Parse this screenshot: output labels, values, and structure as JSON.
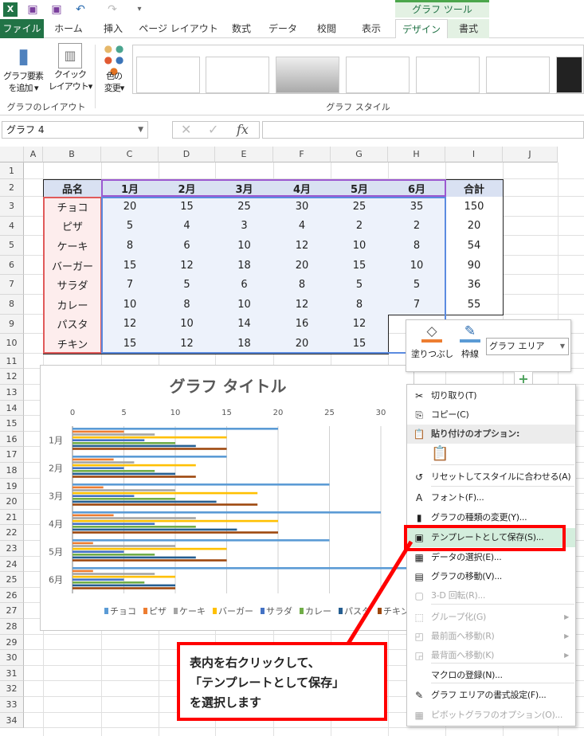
{
  "qat": {
    "icons": [
      "excel-icon",
      "save-icon",
      "save-as-icon",
      "undo-icon",
      "redo-icon",
      "customize-icon"
    ]
  },
  "tool_tab": "グラフ ツール",
  "tabs": [
    "ファイル",
    "ホーム",
    "挿入",
    "ページ レイアウト",
    "数式",
    "データ",
    "校閲",
    "表示",
    "デザイン",
    "書式"
  ],
  "active_tab": "デザイン",
  "ribbon": {
    "add_element": "グラフ要素\nを追加",
    "add_element_l1": "グラフ要素",
    "add_element_l2": "を追加",
    "quick_layout_l1": "クイック",
    "quick_layout_l2": "レイアウト",
    "color_l1": "色の",
    "color_l2": "変更",
    "group_layout": "グラフのレイアウト",
    "group_style": "グラフ スタイル"
  },
  "formula": {
    "name_box": "グラフ 4",
    "fx": "fx",
    "value": ""
  },
  "columns": [
    "A",
    "B",
    "C",
    "D",
    "E",
    "F",
    "G",
    "H",
    "I",
    "J"
  ],
  "rows": [
    "1",
    "2",
    "3",
    "4",
    "5",
    "6",
    "7",
    "8",
    "9",
    "10",
    "11",
    "12",
    "13",
    "14",
    "15",
    "16",
    "17",
    "18",
    "19",
    "20",
    "21",
    "22",
    "23",
    "24",
    "25",
    "26",
    "27",
    "28",
    "29",
    "30",
    "31",
    "32",
    "33",
    "34"
  ],
  "table": {
    "headers": [
      "品名",
      "1月",
      "2月",
      "3月",
      "4月",
      "5月",
      "6月",
      "合計"
    ],
    "rows": [
      [
        "チョコ",
        "20",
        "15",
        "25",
        "30",
        "25",
        "35",
        "150"
      ],
      [
        "ピザ",
        "5",
        "4",
        "3",
        "4",
        "2",
        "2",
        "20"
      ],
      [
        "ケーキ",
        "8",
        "6",
        "10",
        "12",
        "10",
        "8",
        "54"
      ],
      [
        "バーガー",
        "15",
        "12",
        "18",
        "20",
        "15",
        "10",
        "90"
      ],
      [
        "サラダ",
        "7",
        "5",
        "6",
        "8",
        "5",
        "5",
        "36"
      ],
      [
        "カレー",
        "10",
        "8",
        "10",
        "12",
        "8",
        "7",
        "55"
      ],
      [
        "パスタ",
        "12",
        "10",
        "14",
        "16",
        "12",
        "",
        ""
      ],
      [
        "チキン",
        "15",
        "12",
        "18",
        "20",
        "15",
        "",
        ""
      ]
    ]
  },
  "chart_data": {
    "type": "bar",
    "orientation": "horizontal",
    "title": "グラフ タイトル",
    "categories": [
      "1月",
      "2月",
      "3月",
      "4月",
      "5月",
      "6月"
    ],
    "x_ticks": [
      "0",
      "5",
      "10",
      "15",
      "20",
      "25",
      "30"
    ],
    "xlim": [
      0,
      35
    ],
    "grid": true,
    "legend": "bottom",
    "series": [
      {
        "name": "チョコ",
        "color": "#5b9bd5",
        "values": [
          20,
          15,
          25,
          30,
          25,
          35
        ]
      },
      {
        "name": "ピザ",
        "color": "#ed7d31",
        "values": [
          5,
          4,
          3,
          4,
          2,
          2
        ]
      },
      {
        "name": "ケーキ",
        "color": "#a5a5a5",
        "values": [
          8,
          6,
          10,
          12,
          10,
          8
        ]
      },
      {
        "name": "バーガー",
        "color": "#ffc000",
        "values": [
          15,
          12,
          18,
          20,
          15,
          10
        ]
      },
      {
        "name": "サラダ",
        "color": "#4472c4",
        "values": [
          7,
          5,
          6,
          8,
          5,
          5
        ]
      },
      {
        "name": "カレー",
        "color": "#70ad47",
        "values": [
          10,
          8,
          10,
          12,
          8,
          7
        ]
      },
      {
        "name": "パスタ",
        "color": "#255e91",
        "values": [
          12,
          10,
          14,
          16,
          12,
          10
        ]
      },
      {
        "name": "チキン",
        "color": "#9e480e",
        "values": [
          15,
          12,
          18,
          20,
          15,
          10
        ]
      }
    ]
  },
  "minibar": {
    "fill": "塗りつぶし",
    "outline": "枠線",
    "element_select": "グラフ エリア"
  },
  "menu": [
    {
      "label": "切り取り(T)",
      "icon": "scissors-icon",
      "glyph": "✂",
      "disabled": false
    },
    {
      "label": "コピー(C)",
      "icon": "copy-icon",
      "glyph": "⎘",
      "disabled": false
    },
    {
      "label": "貼り付けのオプション:",
      "icon": "paste-icon",
      "glyph": "📋",
      "disabled": false
    },
    {
      "label": "リセットしてスタイルに合わせる(A)",
      "icon": "reset-style-icon",
      "glyph": "↺",
      "disabled": false
    },
    {
      "label": "フォント(F)...",
      "icon": "font-icon",
      "glyph": "A",
      "disabled": false
    },
    {
      "label": "グラフの種類の変更(Y)...",
      "icon": "chart-type-icon",
      "glyph": "▮",
      "disabled": false
    },
    {
      "label": "テンプレートとして保存(S)...",
      "icon": "save-template-icon",
      "glyph": "▣",
      "disabled": false
    },
    {
      "label": "データの選択(E)...",
      "icon": "select-data-icon",
      "glyph": "▦",
      "disabled": false
    },
    {
      "label": "グラフの移動(V)...",
      "icon": "move-chart-icon",
      "glyph": "▤",
      "disabled": false
    },
    {
      "label": "3-D 回転(R)...",
      "icon": "rotate-3d-icon",
      "glyph": "▢",
      "disabled": true
    },
    {
      "label": "グループ化(G)",
      "icon": "group-icon",
      "glyph": "⬚",
      "disabled": true
    },
    {
      "label": "最前面へ移動(R)",
      "icon": "bring-front-icon",
      "glyph": "◰",
      "disabled": true
    },
    {
      "label": "最背面へ移動(K)",
      "icon": "send-back-icon",
      "glyph": "◲",
      "disabled": true
    },
    {
      "label": "マクロの登録(N)...",
      "icon": "",
      "glyph": "",
      "disabled": false
    },
    {
      "label": "グラフ エリアの書式設定(F)...",
      "icon": "format-area-icon",
      "glyph": "✎",
      "disabled": false
    },
    {
      "label": "ピボットグラフのオプション(O)...",
      "icon": "pivot-options-icon",
      "glyph": "▦",
      "disabled": true
    }
  ],
  "callout": {
    "line1": "表内を右クリックして、",
    "line2": "「テンプレートとして保存」",
    "line3": "を選択します"
  },
  "colors": {
    "excel_green": "#217346",
    "highlight_red": "#ff0000",
    "menu_hover": "#d4eedd"
  }
}
